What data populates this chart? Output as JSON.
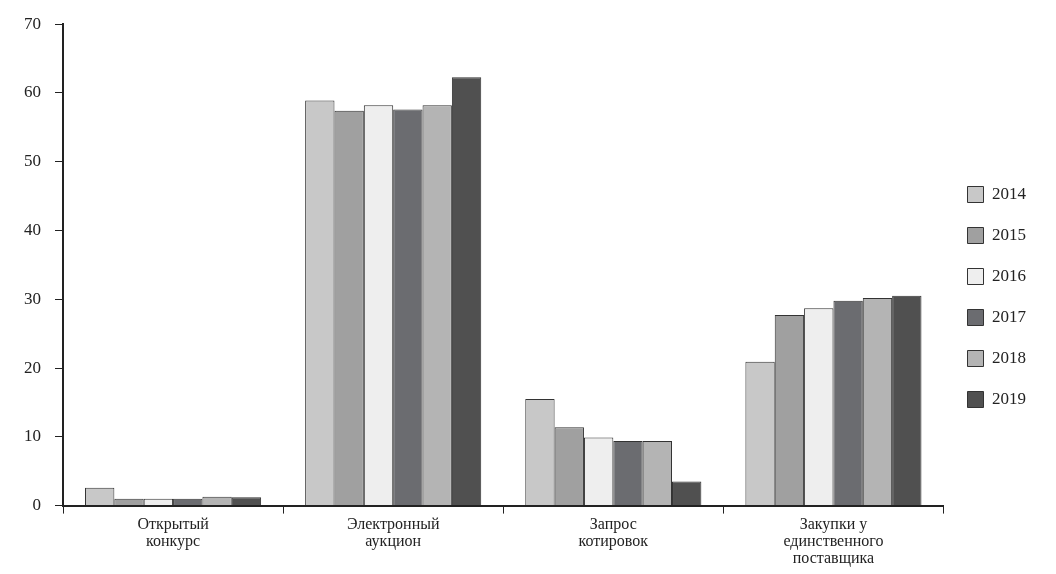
{
  "chart_data": {
    "type": "bar",
    "categories": [
      "Открытый конкурс",
      "Электронный аукцион",
      "Запрос котировок",
      "Закупки у единственного поставщика"
    ],
    "series": [
      {
        "name": "2014",
        "color": "#c8c8c8",
        "values": [
          2.6,
          58.9,
          15.5,
          20.9
        ]
      },
      {
        "name": "2015",
        "color": "#a0a0a0",
        "values": [
          1.0,
          57.4,
          11.4,
          27.7
        ]
      },
      {
        "name": "2016",
        "color": "#eeeeee",
        "values": [
          1.0,
          58.2,
          9.9,
          28.7
        ]
      },
      {
        "name": "2017",
        "color": "#6b6c70",
        "values": [
          1.0,
          57.6,
          9.4,
          29.8
        ]
      },
      {
        "name": "2018",
        "color": "#b4b4b4",
        "values": [
          1.3,
          58.2,
          9.4,
          30.2
        ]
      },
      {
        "name": "2019",
        "color": "#505050",
        "values": [
          1.2,
          62.3,
          3.5,
          30.5
        ]
      }
    ],
    "ylim": [
      0,
      70
    ],
    "yticks": [
      0,
      10,
      20,
      30,
      40,
      50,
      60,
      70
    ],
    "grid": false,
    "legend": "right"
  }
}
